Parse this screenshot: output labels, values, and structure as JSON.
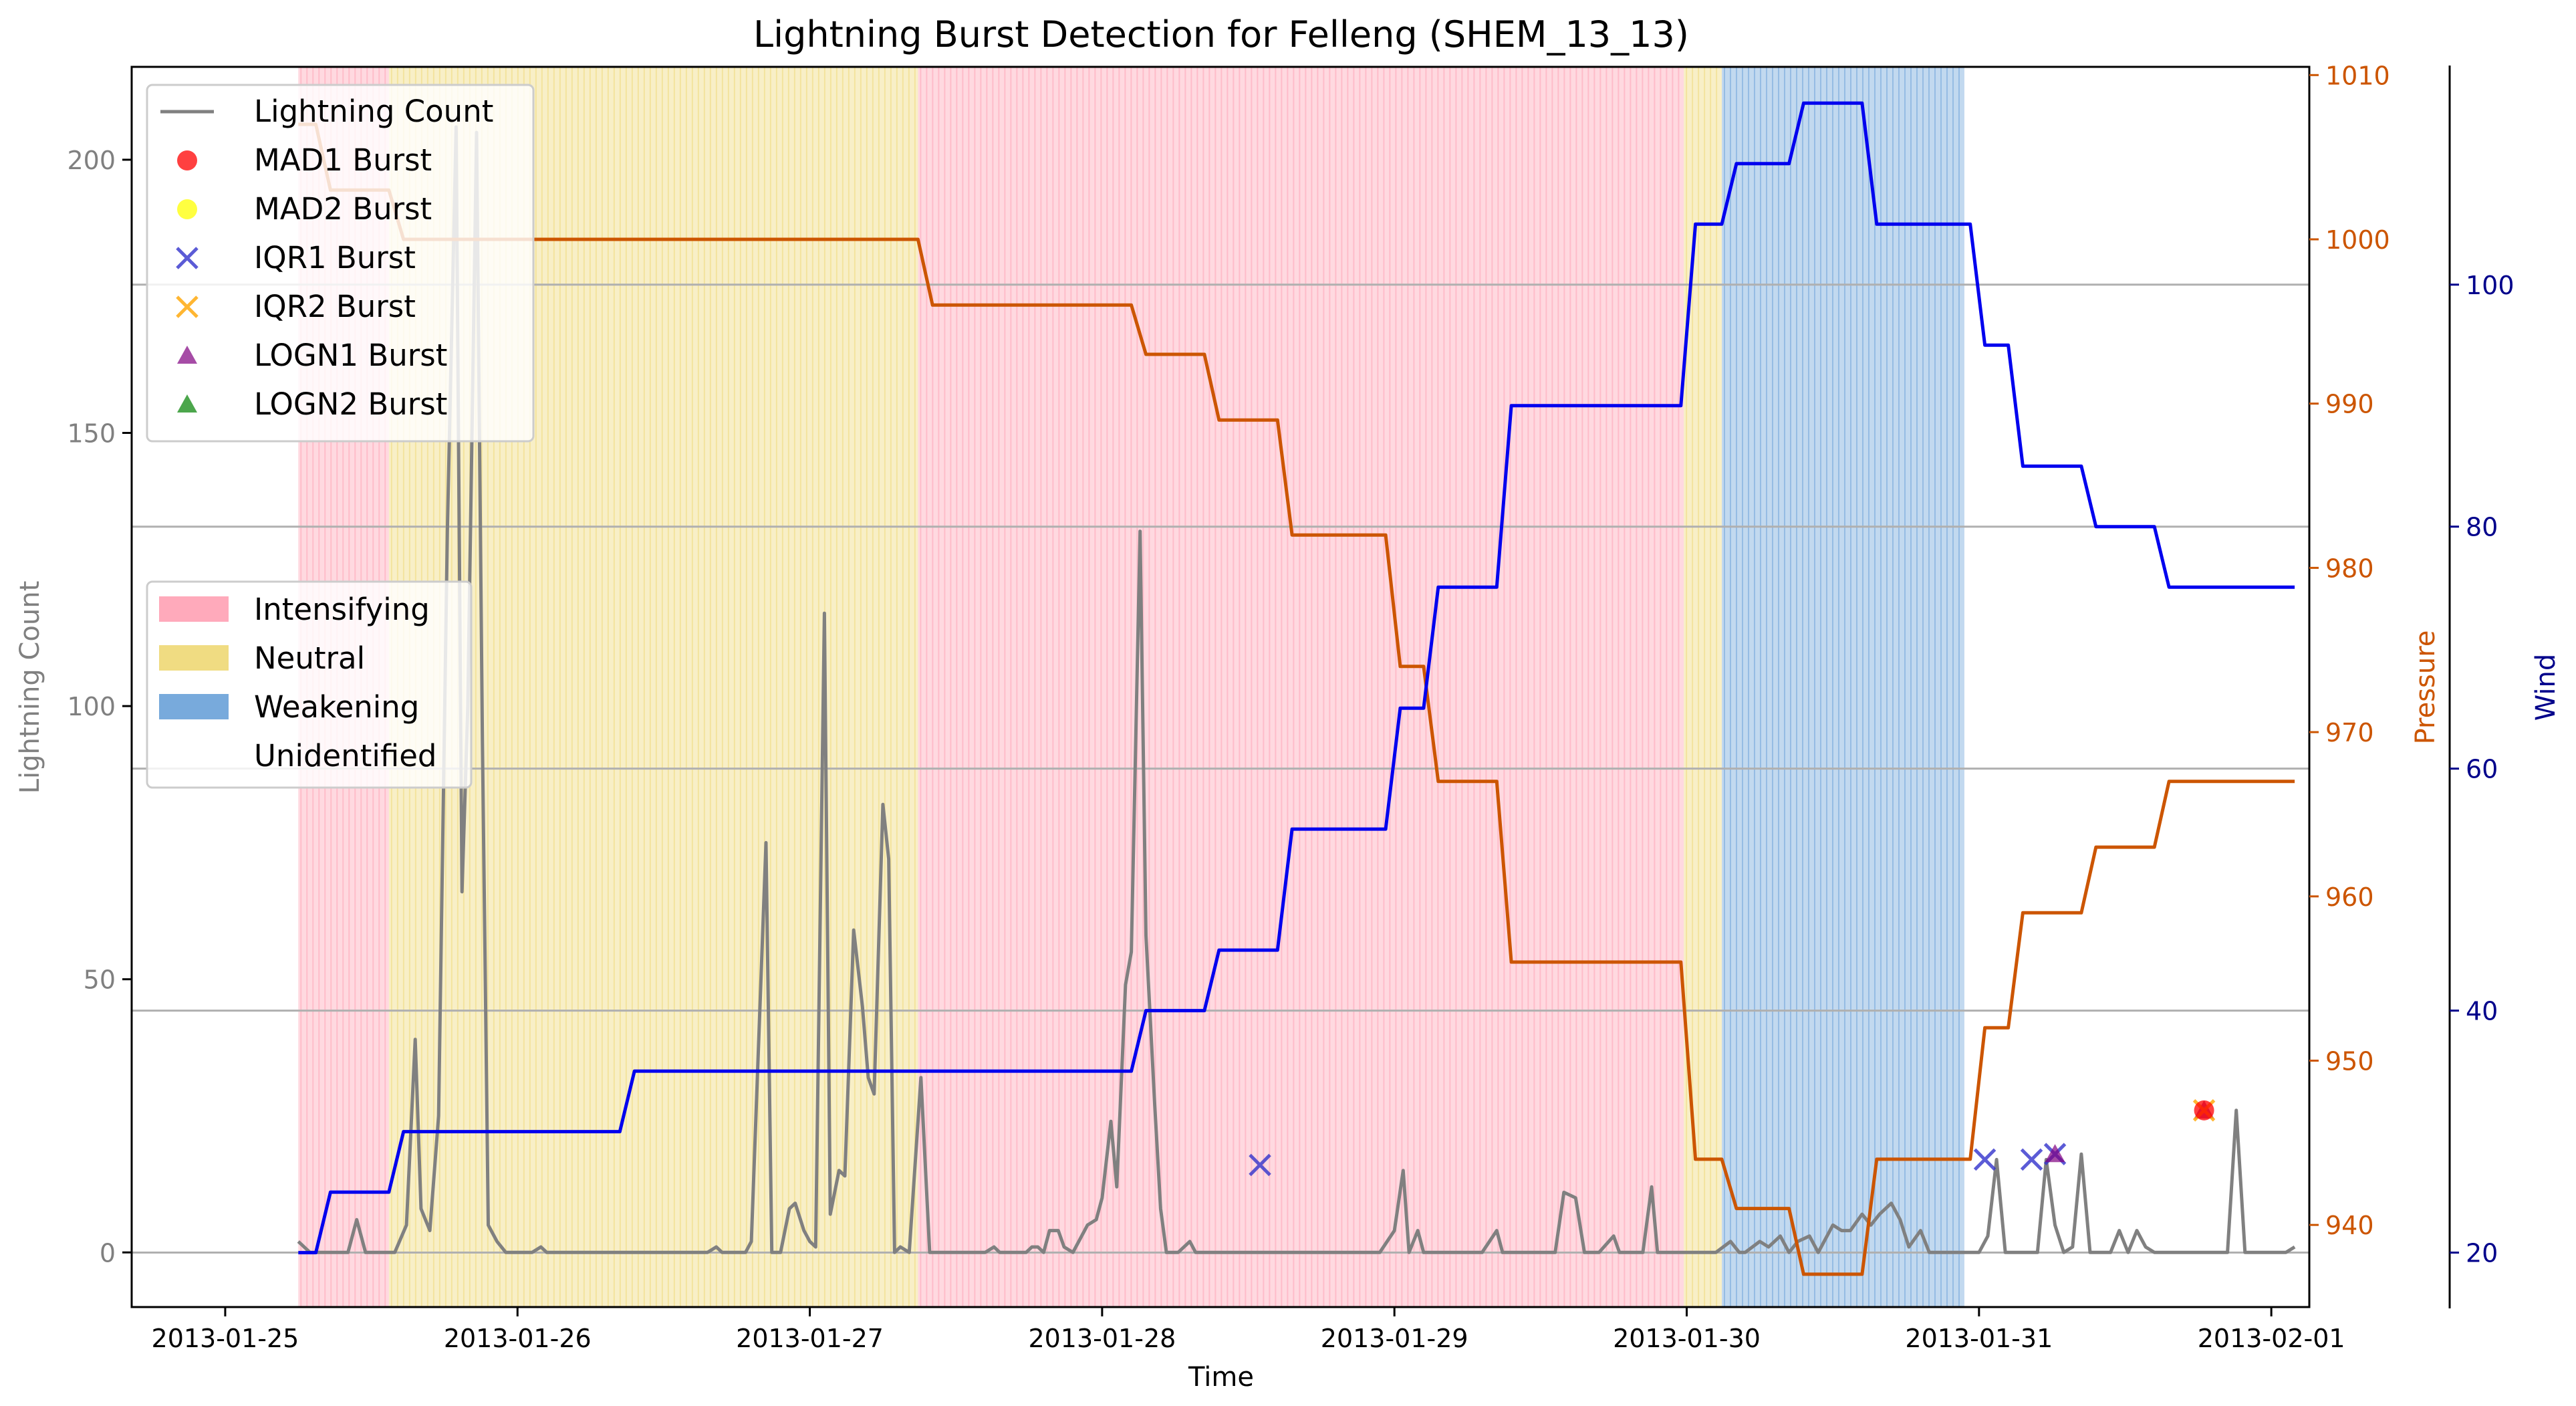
{
  "chart_data": {
    "type": "line",
    "title": "Lightning Burst Detection for Felleng (SHEM_13_13)",
    "xlabel": "Time",
    "ylabel_left": "Lightning Count",
    "ylabel_right1": "Pressure",
    "ylabel_right2": "Wind",
    "x_ticks": [
      "2013-01-25",
      "2013-01-26",
      "2013-01-27",
      "2013-01-28",
      "2013-01-29",
      "2013-01-30",
      "2013-01-31",
      "2013-02-01"
    ],
    "x_range": [
      -0.32,
      7.13
    ],
    "left_axis": {
      "ticks": [
        0,
        50,
        100,
        150,
        200
      ],
      "range": [
        -10,
        217
      ]
    },
    "pressure_axis": {
      "ticks": [
        940,
        950,
        960,
        970,
        980,
        990,
        1000,
        1010
      ],
      "range": [
        935,
        1010.5
      ]
    },
    "wind_axis": {
      "ticks": [
        20,
        40,
        60,
        80,
        100
      ],
      "range": [
        15.5,
        118
      ]
    },
    "grid": "horizontal lines at wind-axis ticks",
    "colors": {
      "lightning": "#808080",
      "pressure": "#cc5500",
      "wind": "#0000ee",
      "intensifying": "#ffaabb",
      "neutral": "#f0dc82",
      "weakening": "#78aadc",
      "pressure_axis_color": "#cc5500",
      "wind_axis_color": "#00008b",
      "left_axis_color": "#808080"
    },
    "phases": [
      {
        "name": "Intensifying",
        "start": 0.25,
        "end": 0.56
      },
      {
        "name": "Neutral",
        "start": 0.56,
        "end": 2.37
      },
      {
        "name": "Intensifying",
        "start": 2.37,
        "end": 4.99
      },
      {
        "name": "Neutral",
        "start": 4.99,
        "end": 5.12
      },
      {
        "name": "Weakening",
        "start": 5.12,
        "end": 5.95
      }
    ],
    "series": [
      {
        "name": "Lightning Count",
        "axis": "left",
        "points": [
          [
            0.25,
            2
          ],
          [
            0.29,
            0
          ],
          [
            0.36,
            0
          ],
          [
            0.42,
            0
          ],
          [
            0.45,
            6
          ],
          [
            0.48,
            0
          ],
          [
            0.55,
            0
          ],
          [
            0.58,
            0
          ],
          [
            0.62,
            5
          ],
          [
            0.65,
            39
          ],
          [
            0.67,
            8
          ],
          [
            0.7,
            4
          ],
          [
            0.73,
            25
          ],
          [
            0.76,
            132
          ],
          [
            0.79,
            206
          ],
          [
            0.81,
            66
          ],
          [
            0.83,
            100
          ],
          [
            0.86,
            205
          ],
          [
            0.88,
            93
          ],
          [
            0.9,
            5
          ],
          [
            0.93,
            2
          ],
          [
            0.96,
            0
          ],
          [
            1.0,
            0
          ],
          [
            1.05,
            0
          ],
          [
            1.08,
            1
          ],
          [
            1.1,
            0
          ],
          [
            1.5,
            0
          ],
          [
            1.65,
            0
          ],
          [
            1.68,
            1
          ],
          [
            1.7,
            0
          ],
          [
            1.75,
            0
          ],
          [
            1.78,
            0
          ],
          [
            1.8,
            2
          ],
          [
            1.85,
            75
          ],
          [
            1.87,
            0
          ],
          [
            1.9,
            0
          ],
          [
            1.93,
            8
          ],
          [
            1.95,
            9
          ],
          [
            1.98,
            4
          ],
          [
            2.0,
            2
          ],
          [
            2.02,
            1
          ],
          [
            2.05,
            117
          ],
          [
            2.07,
            7
          ],
          [
            2.1,
            15
          ],
          [
            2.12,
            14
          ],
          [
            2.15,
            59
          ],
          [
            2.18,
            45
          ],
          [
            2.2,
            32
          ],
          [
            2.22,
            29
          ],
          [
            2.25,
            82
          ],
          [
            2.27,
            72
          ],
          [
            2.29,
            0
          ],
          [
            2.31,
            1
          ],
          [
            2.34,
            0
          ],
          [
            2.38,
            32
          ],
          [
            2.41,
            0
          ],
          [
            2.44,
            0
          ],
          [
            2.5,
            0
          ],
          [
            2.6,
            0
          ],
          [
            2.63,
            1
          ],
          [
            2.65,
            0
          ],
          [
            2.72,
            0
          ],
          [
            2.74,
            0
          ],
          [
            2.76,
            1
          ],
          [
            2.78,
            1
          ],
          [
            2.8,
            0
          ],
          [
            2.82,
            4
          ],
          [
            2.85,
            4
          ],
          [
            2.87,
            1
          ],
          [
            2.9,
            0
          ],
          [
            2.95,
            5
          ],
          [
            2.98,
            6
          ],
          [
            3.0,
            10
          ],
          [
            3.03,
            24
          ],
          [
            3.05,
            12
          ],
          [
            3.08,
            49
          ],
          [
            3.1,
            55
          ],
          [
            3.13,
            132
          ],
          [
            3.15,
            58
          ],
          [
            3.18,
            27
          ],
          [
            3.2,
            8
          ],
          [
            3.22,
            0
          ],
          [
            3.26,
            0
          ],
          [
            3.3,
            2
          ],
          [
            3.32,
            0
          ],
          [
            3.4,
            0
          ],
          [
            3.5,
            0
          ],
          [
            3.95,
            0
          ],
          [
            4.0,
            4
          ],
          [
            4.03,
            15
          ],
          [
            4.05,
            0
          ],
          [
            4.08,
            4
          ],
          [
            4.1,
            0
          ],
          [
            4.3,
            0
          ],
          [
            4.35,
            4
          ],
          [
            4.37,
            0
          ],
          [
            4.55,
            0
          ],
          [
            4.58,
            11
          ],
          [
            4.62,
            10
          ],
          [
            4.65,
            0
          ],
          [
            4.7,
            0
          ],
          [
            4.75,
            3
          ],
          [
            4.77,
            0
          ],
          [
            4.85,
            0
          ],
          [
            4.88,
            12
          ],
          [
            4.9,
            0
          ],
          [
            4.95,
            0
          ],
          [
            4.98,
            0
          ],
          [
            5.0,
            0
          ],
          [
            5.05,
            0
          ],
          [
            5.1,
            0
          ],
          [
            5.15,
            2
          ],
          [
            5.18,
            0
          ],
          [
            5.2,
            0
          ],
          [
            5.25,
            2
          ],
          [
            5.28,
            1
          ],
          [
            5.32,
            3
          ],
          [
            5.35,
            0
          ],
          [
            5.38,
            2
          ],
          [
            5.42,
            3
          ],
          [
            5.45,
            0
          ],
          [
            5.5,
            5
          ],
          [
            5.53,
            4
          ],
          [
            5.56,
            4
          ],
          [
            5.6,
            7
          ],
          [
            5.63,
            5
          ],
          [
            5.66,
            7
          ],
          [
            5.7,
            9
          ],
          [
            5.73,
            6
          ],
          [
            5.76,
            1
          ],
          [
            5.8,
            4
          ],
          [
            5.83,
            0
          ],
          [
            5.9,
            0
          ],
          [
            5.96,
            0
          ],
          [
            6.0,
            0
          ],
          [
            6.03,
            3
          ],
          [
            6.06,
            17
          ],
          [
            6.09,
            0
          ],
          [
            6.2,
            0
          ],
          [
            6.23,
            17
          ],
          [
            6.26,
            5
          ],
          [
            6.29,
            0
          ],
          [
            6.32,
            1
          ],
          [
            6.35,
            18
          ],
          [
            6.38,
            0
          ],
          [
            6.45,
            0
          ],
          [
            6.48,
            4
          ],
          [
            6.51,
            0
          ],
          [
            6.54,
            4
          ],
          [
            6.57,
            1
          ],
          [
            6.6,
            0
          ],
          [
            6.8,
            0
          ],
          [
            6.85,
            0
          ],
          [
            6.88,
            26
          ],
          [
            6.91,
            0
          ],
          [
            7.0,
            0
          ],
          [
            7.05,
            0
          ],
          [
            7.08,
            1
          ]
        ]
      },
      {
        "name": "Pressure",
        "axis": "right1",
        "steps": [
          [
            0.25,
            1007
          ],
          [
            0.31,
            1007
          ],
          [
            0.36,
            1003
          ],
          [
            0.56,
            1003
          ],
          [
            0.61,
            1000
          ],
          [
            2.37,
            1000
          ],
          [
            2.42,
            996
          ],
          [
            3.1,
            996
          ],
          [
            3.15,
            993
          ],
          [
            3.35,
            993
          ],
          [
            3.4,
            989
          ],
          [
            3.6,
            989
          ],
          [
            3.65,
            982
          ],
          [
            3.97,
            982
          ],
          [
            4.02,
            974
          ],
          [
            4.1,
            974
          ],
          [
            4.15,
            967
          ],
          [
            4.35,
            967
          ],
          [
            4.4,
            956
          ],
          [
            4.98,
            956
          ],
          [
            5.03,
            944
          ],
          [
            5.12,
            944
          ],
          [
            5.17,
            941
          ],
          [
            5.35,
            941
          ],
          [
            5.4,
            937
          ],
          [
            5.6,
            937
          ],
          [
            5.65,
            944
          ],
          [
            5.97,
            944
          ],
          [
            6.02,
            952
          ],
          [
            6.1,
            952
          ],
          [
            6.15,
            959
          ],
          [
            6.35,
            959
          ],
          [
            6.4,
            963
          ],
          [
            6.6,
            963
          ],
          [
            6.65,
            967
          ],
          [
            7.08,
            967
          ]
        ]
      },
      {
        "name": "Wind",
        "axis": "right2",
        "steps": [
          [
            0.25,
            20
          ],
          [
            0.31,
            20
          ],
          [
            0.36,
            25
          ],
          [
            0.56,
            25
          ],
          [
            0.61,
            30
          ],
          [
            1.35,
            30
          ],
          [
            1.4,
            35
          ],
          [
            3.1,
            35
          ],
          [
            3.15,
            40
          ],
          [
            3.35,
            40
          ],
          [
            3.4,
            45
          ],
          [
            3.6,
            45
          ],
          [
            3.65,
            55
          ],
          [
            3.97,
            55
          ],
          [
            4.02,
            65
          ],
          [
            4.1,
            65
          ],
          [
            4.15,
            75
          ],
          [
            4.35,
            75
          ],
          [
            4.4,
            90
          ],
          [
            4.98,
            90
          ],
          [
            5.03,
            105
          ],
          [
            5.12,
            105
          ],
          [
            5.17,
            110
          ],
          [
            5.35,
            110
          ],
          [
            5.4,
            115
          ],
          [
            5.6,
            115
          ],
          [
            5.65,
            105
          ],
          [
            5.97,
            105
          ],
          [
            6.02,
            95
          ],
          [
            6.1,
            95
          ],
          [
            6.15,
            85
          ],
          [
            6.35,
            85
          ],
          [
            6.4,
            80
          ],
          [
            6.6,
            80
          ],
          [
            6.65,
            75
          ],
          [
            7.08,
            75
          ]
        ]
      }
    ],
    "bursts": {
      "IQR1 Burst": [
        [
          3.54,
          16
        ],
        [
          6.02,
          17
        ],
        [
          6.18,
          17
        ],
        [
          6.26,
          18
        ]
      ],
      "LOGN1 Burst": [
        [
          6.26,
          18
        ],
        [
          6.77,
          26
        ]
      ],
      "IQR2 Burst": [
        [
          6.77,
          26
        ]
      ],
      "MAD1 Burst": [
        [
          6.77,
          26
        ]
      ]
    },
    "legend_lines": [
      "Lightning Count",
      "MAD1 Burst",
      "MAD2 Burst",
      "IQR1 Burst",
      "IQR2 Burst",
      "LOGN1 Burst",
      "LOGN2 Burst"
    ],
    "legend_phases": [
      "Intensifying",
      "Neutral",
      "Weakening",
      "Unidentified"
    ],
    "legend_placement": [
      "upper-left",
      "center-left"
    ]
  }
}
